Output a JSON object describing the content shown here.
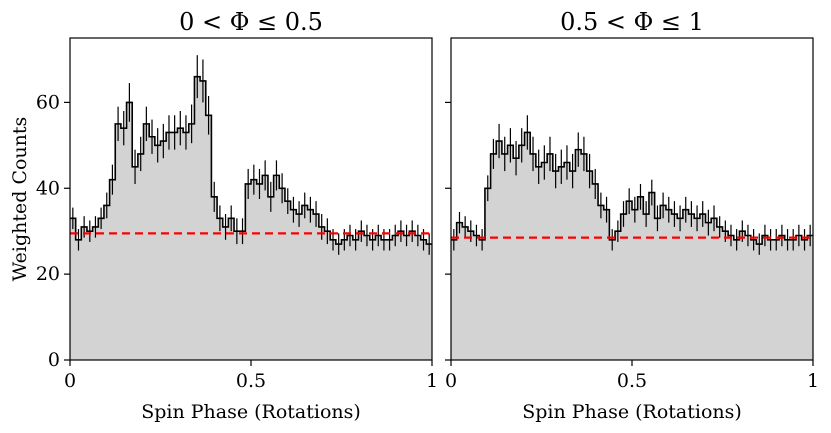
{
  "chart_data": [
    {
      "type": "histogram",
      "title": "0 < Φ ≤ 0.5",
      "xlabel": "Spin Phase (Rotations)",
      "ylabel": "Weighted Counts",
      "xlim": [
        0,
        1
      ],
      "ylim": [
        0,
        75
      ],
      "xticks": [
        0,
        0.5,
        1
      ],
      "xtick_labels": [
        "0",
        "0.5",
        "1"
      ],
      "yticks": [
        0,
        20,
        40,
        60
      ],
      "ytick_labels": [
        "0",
        "20",
        "40",
        "60"
      ],
      "bins": 64,
      "values": [
        33,
        28,
        31,
        30,
        31,
        33,
        36,
        42,
        55,
        54,
        60,
        45,
        48,
        55,
        52,
        50,
        51,
        53,
        53,
        54,
        53,
        55,
        66,
        65,
        57,
        38,
        33,
        31,
        33,
        30,
        30,
        41,
        42,
        41,
        43,
        38,
        43,
        40,
        37,
        35,
        34,
        36,
        35,
        34,
        31,
        30,
        28,
        27,
        28,
        29,
        28,
        30,
        29,
        28,
        29,
        28,
        28,
        29,
        30,
        29,
        30,
        29,
        28,
        27
      ],
      "errors": [
        2.5,
        2.5,
        2.5,
        2.5,
        2.5,
        2.5,
        3,
        3.5,
        4,
        4,
        4.5,
        4,
        4,
        4,
        4,
        4,
        4,
        4,
        4,
        4,
        4,
        4.5,
        5,
        5,
        4.5,
        3.5,
        3,
        3,
        3,
        3,
        3,
        3.5,
        3.5,
        3.5,
        3.5,
        3.5,
        3.5,
        3.5,
        3,
        3,
        3,
        3,
        3,
        3,
        3,
        3,
        2.5,
        2.5,
        2.5,
        2.5,
        2.5,
        2.5,
        2.5,
        2.5,
        2.5,
        2.5,
        2.5,
        2.5,
        2.5,
        2.5,
        2.5,
        2.5,
        2.5,
        2.5
      ],
      "mean_line": 29.5,
      "fill_color": "#d3d3d3",
      "mean_line_color": "#ff0000"
    },
    {
      "type": "histogram",
      "title": "0.5 < Φ ≤ 1",
      "xlabel": "Spin Phase (Rotations)",
      "ylabel": "",
      "xlim": [
        0,
        1
      ],
      "ylim": [
        0,
        75
      ],
      "xticks": [
        0,
        0.5,
        1
      ],
      "xtick_labels": [
        "0",
        "0.5",
        "1"
      ],
      "yticks": [
        0,
        20,
        40,
        60
      ],
      "ytick_labels": [],
      "bins": 64,
      "values": [
        28,
        32,
        31,
        30,
        29,
        28,
        40,
        48,
        51,
        48,
        50,
        47,
        50,
        53,
        48,
        45,
        46,
        48,
        44,
        45,
        46,
        44,
        49,
        48,
        44,
        41,
        36,
        35,
        28,
        30,
        34,
        37,
        35,
        38,
        34,
        39,
        33,
        36,
        35,
        34,
        33,
        35,
        34,
        33,
        34,
        32,
        33,
        31,
        30,
        29,
        28,
        30,
        29,
        28,
        27,
        29,
        28,
        28,
        29,
        28,
        28,
        29,
        28,
        29
      ],
      "errors": [
        2.5,
        2.5,
        2.5,
        2.5,
        2.5,
        2.5,
        3,
        3.5,
        4,
        4,
        4,
        4,
        4,
        4,
        4,
        4,
        4,
        4,
        4,
        4,
        4,
        4,
        4,
        4,
        4,
        3.5,
        3,
        3,
        2.5,
        2.5,
        3,
        3,
        3,
        3,
        3,
        3,
        3,
        3,
        3,
        3,
        3,
        3,
        3,
        3,
        3,
        3,
        3,
        2.5,
        2.5,
        2.5,
        2.5,
        2.5,
        2.5,
        2.5,
        2.5,
        2.5,
        2.5,
        2.5,
        2.5,
        2.5,
        2.5,
        2.5,
        2.5,
        2.5
      ],
      "mean_line": 28.5,
      "fill_color": "#d3d3d3",
      "mean_line_color": "#ff0000"
    }
  ]
}
